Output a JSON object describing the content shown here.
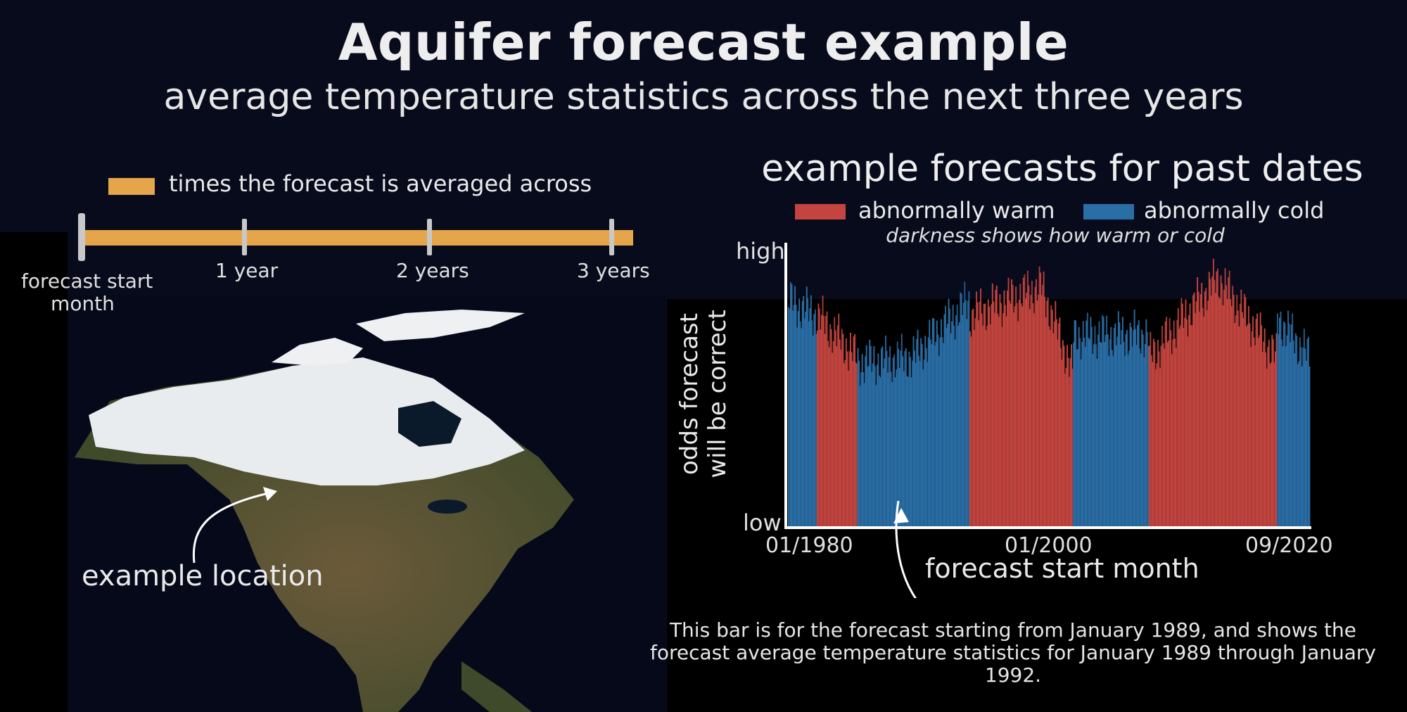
{
  "header": {
    "title": "Aquifer forecast example",
    "subtitle": "average temperature statistics across the next three years"
  },
  "timeline": {
    "legend_label": "times the forecast is averaged across",
    "legend_color": "#e5a54a",
    "ticks": [
      "1 year",
      "2 years",
      "3 years"
    ],
    "start_label_line1": "forecast start",
    "start_label_line2": "month"
  },
  "map": {
    "annotation": "example location"
  },
  "chart_data": {
    "type": "bar",
    "title": "example forecasts for past dates",
    "legend": [
      {
        "name": "abnormally warm",
        "color": "#c4453f"
      },
      {
        "name": "abnormally cold",
        "color": "#2a6ea6"
      }
    ],
    "legend_note": "darkness shows how warm or cold",
    "xlabel": "forecast start month",
    "ylabel_line1": "odds forecast",
    "ylabel_line2": "will be correct",
    "y_tick_labels": {
      "high": "high",
      "low": "low"
    },
    "x_tick_labels": [
      "01/1980",
      "01/2000",
      "09/2020"
    ],
    "x_range": [
      "1980-01",
      "2020-09"
    ],
    "segments": [
      {
        "from": "1980-01",
        "to": "1982-03",
        "category": "abnormally cold",
        "start": 0.8,
        "end": 0.75
      },
      {
        "from": "1982-04",
        "to": "1985-05",
        "category": "abnormally warm",
        "start": 0.75,
        "end": 0.6
      },
      {
        "from": "1985-06",
        "to": "1989-08",
        "category": "abnormally cold",
        "start": 0.58,
        "end": 0.6
      },
      {
        "from": "1989-09",
        "to": "1994-02",
        "category": "abnormally cold",
        "start": 0.6,
        "end": 0.8
      },
      {
        "from": "1994-03",
        "to": "1999-09",
        "category": "abnormally warm",
        "start": 0.75,
        "end": 0.85
      },
      {
        "from": "1999-10",
        "to": "2002-03",
        "category": "abnormally warm",
        "start": 0.85,
        "end": 0.55
      },
      {
        "from": "2002-04",
        "to": "2008-02",
        "category": "abnormally cold",
        "start": 0.68,
        "end": 0.68
      },
      {
        "from": "2008-03",
        "to": "2013-07",
        "category": "abnormally warm",
        "start": 0.6,
        "end": 0.88
      },
      {
        "from": "2013-08",
        "to": "2018-02",
        "category": "abnormally warm",
        "start": 0.88,
        "end": 0.6
      },
      {
        "from": "2018-03",
        "to": "2020-09",
        "category": "abnormally cold",
        "start": 0.74,
        "end": 0.6
      }
    ],
    "ylim": [
      0,
      1
    ],
    "grid": false
  },
  "footnote": {
    "line1": "This bar is for the forecast starting from January 1989, and shows the",
    "line2": "forecast average temperature statistics for January 1989 through January 1992."
  }
}
